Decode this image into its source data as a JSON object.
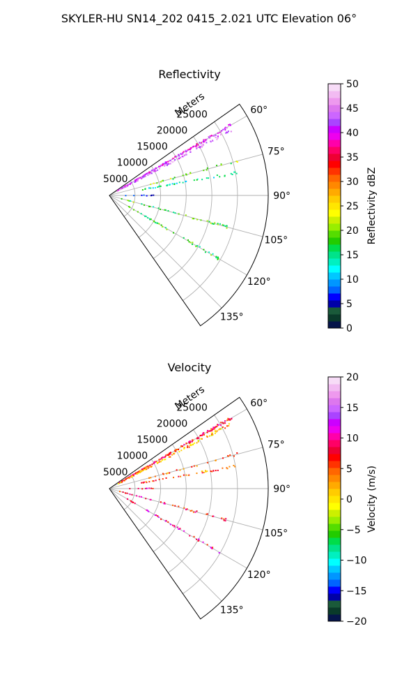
{
  "figure": {
    "suptitle": "SKYLER-HU  SN14_202  0415_2.021 UTC Elevation 06°"
  },
  "chart_data": [
    {
      "type": "scatter",
      "projection": "polar-sector",
      "title": "Reflectivity",
      "radial_axis_label": "Meters",
      "radial_ticks": [
        5000,
        10000,
        15000,
        20000,
        25000
      ],
      "radial_tick_labels": [
        "5000",
        "10000",
        "15000",
        "20000",
        "25000"
      ],
      "r_max": 31000,
      "azimuth_range_deg": [
        55,
        145
      ],
      "azimuth_ticks": [
        "60°",
        "75°",
        "90°",
        "105°",
        "120°",
        "135°"
      ],
      "grid": true,
      "colorbar": {
        "label": "Reflectivity dBZ",
        "range": [
          0,
          50
        ],
        "ticks": [
          "0",
          "5",
          "10",
          "15",
          "20",
          "25",
          "30",
          "35",
          "40",
          "45",
          "50"
        ],
        "colors": [
          "#06154a",
          "#0a3a2a",
          "#1a5a3a",
          "#0000a8",
          "#0000ff",
          "#0064ff",
          "#0096ff",
          "#00c8ff",
          "#00ffff",
          "#00f0c0",
          "#00e38a",
          "#00dd4a",
          "#22cc00",
          "#55dd00",
          "#99ee00",
          "#ccf000",
          "#ffff00",
          "#ffe600",
          "#ffcc00",
          "#ffaa00",
          "#ff8800",
          "#ff6600",
          "#ff3300",
          "#ff0000",
          "#ee0033",
          "#ff0066",
          "#ff00aa",
          "#ee00ee",
          "#cc00ff",
          "#aa44ff",
          "#cc66ff",
          "#dd77ee",
          "#ee99ee",
          "#f2bbf2",
          "#f7dcf7"
        ]
      },
      "rays": [
        {
          "az": 60,
          "r": [
            2000,
            27500
          ],
          "value": 41,
          "density": 1.6
        },
        {
          "az": 62,
          "r": [
            1500,
            27000
          ],
          "value": 44,
          "density": 0.9
        },
        {
          "az": 75,
          "r": [
            8000,
            26000
          ],
          "value": 20,
          "density": 0.35
        },
        {
          "az": 80,
          "r": [
            6000,
            25500
          ],
          "value": 14,
          "density": 0.55
        },
        {
          "az": 90,
          "r": [
            3000,
            9000
          ],
          "value": 6,
          "density": 0.35
        },
        {
          "az": 105,
          "r": [
            2000,
            24000
          ],
          "value": 18,
          "density": 0.45
        },
        {
          "az": 120,
          "r": [
            4000,
            25000
          ],
          "value": 17,
          "density": 0.55
        }
      ]
    },
    {
      "type": "scatter",
      "projection": "polar-sector",
      "title": "Velocity",
      "radial_axis_label": "Meters",
      "radial_ticks": [
        5000,
        10000,
        15000,
        20000,
        25000
      ],
      "radial_tick_labels": [
        "5000",
        "10000",
        "15000",
        "20000",
        "25000"
      ],
      "r_max": 31000,
      "azimuth_range_deg": [
        55,
        145
      ],
      "azimuth_ticks": [
        "60°",
        "75°",
        "90°",
        "105°",
        "120°",
        "135°"
      ],
      "grid": true,
      "colorbar": {
        "label": "Velocity (m/s)",
        "range": [
          -20,
          20
        ],
        "ticks": [
          "−20",
          "−15",
          "−10",
          "−5",
          "0",
          "5",
          "10",
          "15",
          "20"
        ],
        "colors": [
          "#06154a",
          "#0a3a2a",
          "#1a5a3a",
          "#0000a8",
          "#0000ff",
          "#0064ff",
          "#0096ff",
          "#00c8ff",
          "#00ffff",
          "#00f0c0",
          "#00e38a",
          "#00dd4a",
          "#22cc00",
          "#55dd00",
          "#99ee00",
          "#ccf000",
          "#ffff00",
          "#ffe600",
          "#ffcc00",
          "#ffaa00",
          "#ff8800",
          "#ff6600",
          "#ff3300",
          "#ff0000",
          "#ee0033",
          "#ff0066",
          "#ff00aa",
          "#ee00ee",
          "#cc00ff",
          "#aa44ff",
          "#cc66ff",
          "#dd77ee",
          "#ee99ee",
          "#f2bbf2",
          "#f7dcf7"
        ]
      },
      "rays": [
        {
          "az": 60,
          "r": [
            2000,
            27500
          ],
          "value": 7,
          "density": 1.6
        },
        {
          "az": 62,
          "r": [
            1500,
            27000
          ],
          "value": 2,
          "density": 0.9
        },
        {
          "az": 75,
          "r": [
            8000,
            26000
          ],
          "value": 4,
          "density": 0.35
        },
        {
          "az": 80,
          "r": [
            6000,
            25500
          ],
          "value": 5,
          "density": 0.55
        },
        {
          "az": 90,
          "r": [
            3000,
            9000
          ],
          "value": 9,
          "density": 0.35
        },
        {
          "az": 105,
          "r": [
            2000,
            24000
          ],
          "value": 8,
          "density": 0.45
        },
        {
          "az": 120,
          "r": [
            4000,
            25000
          ],
          "value": 9,
          "density": 0.55
        }
      ]
    }
  ]
}
